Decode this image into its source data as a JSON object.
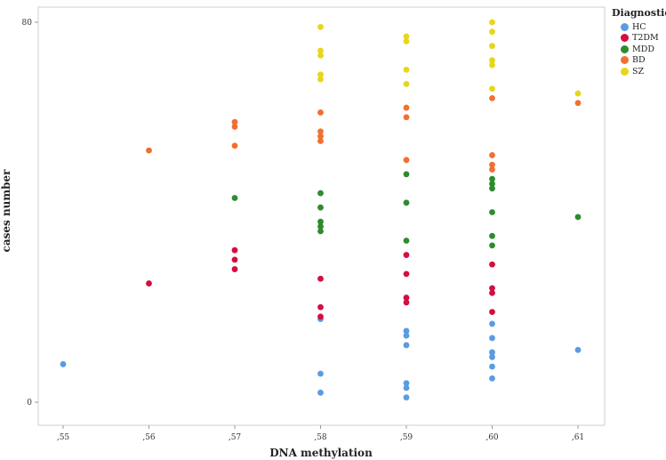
{
  "chart_data": {
    "type": "scatter",
    "xlabel": "DNA methylation",
    "ylabel": "cases number",
    "x_categories": [
      ",55",
      ",56",
      ",57",
      ",58",
      ",59",
      ",60",
      ",61"
    ],
    "ylim": [
      0,
      80
    ],
    "y_ticks": [
      "0",
      "80"
    ],
    "grid": false,
    "legend": {
      "title": "Diagnostic",
      "position": "top-right"
    },
    "series": [
      {
        "name": "HC",
        "color": "#5a9be3",
        "points": [
          [
            ",55",
            8
          ],
          [
            ",58",
            17.5
          ],
          [
            ",58",
            6
          ],
          [
            ",58",
            2
          ],
          [
            ",59",
            15
          ],
          [
            ",59",
            14
          ],
          [
            ",59",
            12
          ],
          [
            ",59",
            4
          ],
          [
            ",59",
            3
          ],
          [
            ",59",
            1
          ],
          [
            ",60",
            16.5
          ],
          [
            ",60",
            13.5
          ],
          [
            ",60",
            10.5
          ],
          [
            ",60",
            9.5
          ],
          [
            ",60",
            7.5
          ],
          [
            ",60",
            5
          ],
          [
            ",61",
            11
          ]
        ]
      },
      {
        "name": "T2DM",
        "color": "#d40e3f",
        "points": [
          [
            ",56",
            25
          ],
          [
            ",57",
            32
          ],
          [
            ",57",
            30
          ],
          [
            ",57",
            28
          ],
          [
            ",58",
            26
          ],
          [
            ",58",
            20
          ],
          [
            ",58",
            18
          ],
          [
            ",59",
            31
          ],
          [
            ",59",
            27
          ],
          [
            ",59",
            22
          ],
          [
            ",59",
            21
          ],
          [
            ",60",
            29
          ],
          [
            ",60",
            24
          ],
          [
            ",60",
            23
          ],
          [
            ",60",
            19
          ]
        ]
      },
      {
        "name": "MDD",
        "color": "#2e8b2e",
        "points": [
          [
            ",57",
            43
          ],
          [
            ",58",
            44
          ],
          [
            ",58",
            41
          ],
          [
            ",58",
            38
          ],
          [
            ",58",
            37
          ],
          [
            ",58",
            36
          ],
          [
            ",59",
            48
          ],
          [
            ",59",
            42
          ],
          [
            ",59",
            34
          ],
          [
            ",60",
            47
          ],
          [
            ",60",
            46
          ],
          [
            ",60",
            45
          ],
          [
            ",60",
            40
          ],
          [
            ",60",
            35
          ],
          [
            ",60",
            33
          ],
          [
            ",61",
            39
          ]
        ]
      },
      {
        "name": "BD",
        "color": "#f07030",
        "points": [
          [
            ",56",
            53
          ],
          [
            ",57",
            59
          ],
          [
            ",57",
            58
          ],
          [
            ",57",
            54
          ],
          [
            ",58",
            61
          ],
          [
            ",58",
            57
          ],
          [
            ",58",
            56
          ],
          [
            ",58",
            55
          ],
          [
            ",59",
            62
          ],
          [
            ",59",
            60
          ],
          [
            ",59",
            51
          ],
          [
            ",60",
            64
          ],
          [
            ",60",
            52
          ],
          [
            ",60",
            50
          ],
          [
            ",60",
            49
          ],
          [
            ",61",
            63
          ]
        ]
      },
      {
        "name": "SZ",
        "color": "#e8d51c",
        "points": [
          [
            ",58",
            79
          ],
          [
            ",58",
            74
          ],
          [
            ",58",
            73
          ],
          [
            ",58",
            69
          ],
          [
            ",58",
            68
          ],
          [
            ",59",
            77
          ],
          [
            ",59",
            76
          ],
          [
            ",59",
            70
          ],
          [
            ",59",
            67
          ],
          [
            ",60",
            80
          ],
          [
            ",60",
            78
          ],
          [
            ",60",
            75
          ],
          [
            ",60",
            72
          ],
          [
            ",60",
            71
          ],
          [
            ",60",
            66
          ],
          [
            ",61",
            65
          ]
        ]
      }
    ]
  }
}
